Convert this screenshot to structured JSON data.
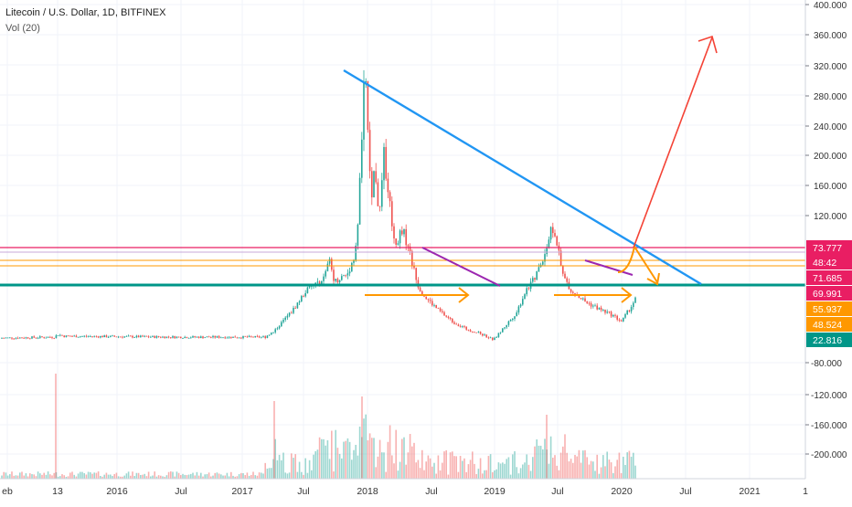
{
  "header": {
    "symbol_title": "Litecoin / U.S. Dollar, 1D, BITFINEX",
    "volume_label": "Vol (20)"
  },
  "chart_data": {
    "type": "candlestick",
    "title": "Litecoin / U.S. Dollar, 1D, BITFINEX",
    "y_axis": {
      "position": "right",
      "price_ticks": [
        "400.000",
        "360.000",
        "320.000",
        "280.000",
        "240.000",
        "200.000",
        "160.000",
        "120.000"
      ],
      "volume_ticks": [
        "-80.000",
        "-120.000",
        "-160.000",
        "-200.000"
      ]
    },
    "x_axis": {
      "ticks": [
        "eb",
        "13",
        "2016",
        "Jul",
        "2017",
        "Jul",
        "2018",
        "Jul",
        "2019",
        "Jul",
        "2020",
        "Jul",
        "2021",
        "1"
      ]
    },
    "price_labels": [
      {
        "text": "73.777",
        "color": "#e91e63"
      },
      {
        "text": "48:42",
        "color": "#e91e63"
      },
      {
        "text": "71.685",
        "color": "#e91e63"
      },
      {
        "text": "69.991",
        "color": "#e91e63"
      },
      {
        "text": "55.937",
        "color": "#ff9800"
      },
      {
        "text": "48.524",
        "color": "#ff9800"
      },
      {
        "text": "22.816",
        "color": "#009688"
      }
    ],
    "series": [
      {
        "name": "Litecoin / U.S. Dollar",
        "kind": "candles",
        "up_color": "#26a69a",
        "down_color": "#ef5350"
      },
      {
        "name": "Vol (20)",
        "kind": "volume"
      }
    ],
    "grid": true
  },
  "colors": {
    "background": "#ffffff",
    "grid": "#f0f3fa",
    "up": "#26a69a",
    "down": "#ef5350",
    "trendline": "#2196f3",
    "support": "#009688",
    "resistance": "#e91e63",
    "orange": "#ff9800",
    "purple": "#9c27b0",
    "projection": "#f44336"
  }
}
